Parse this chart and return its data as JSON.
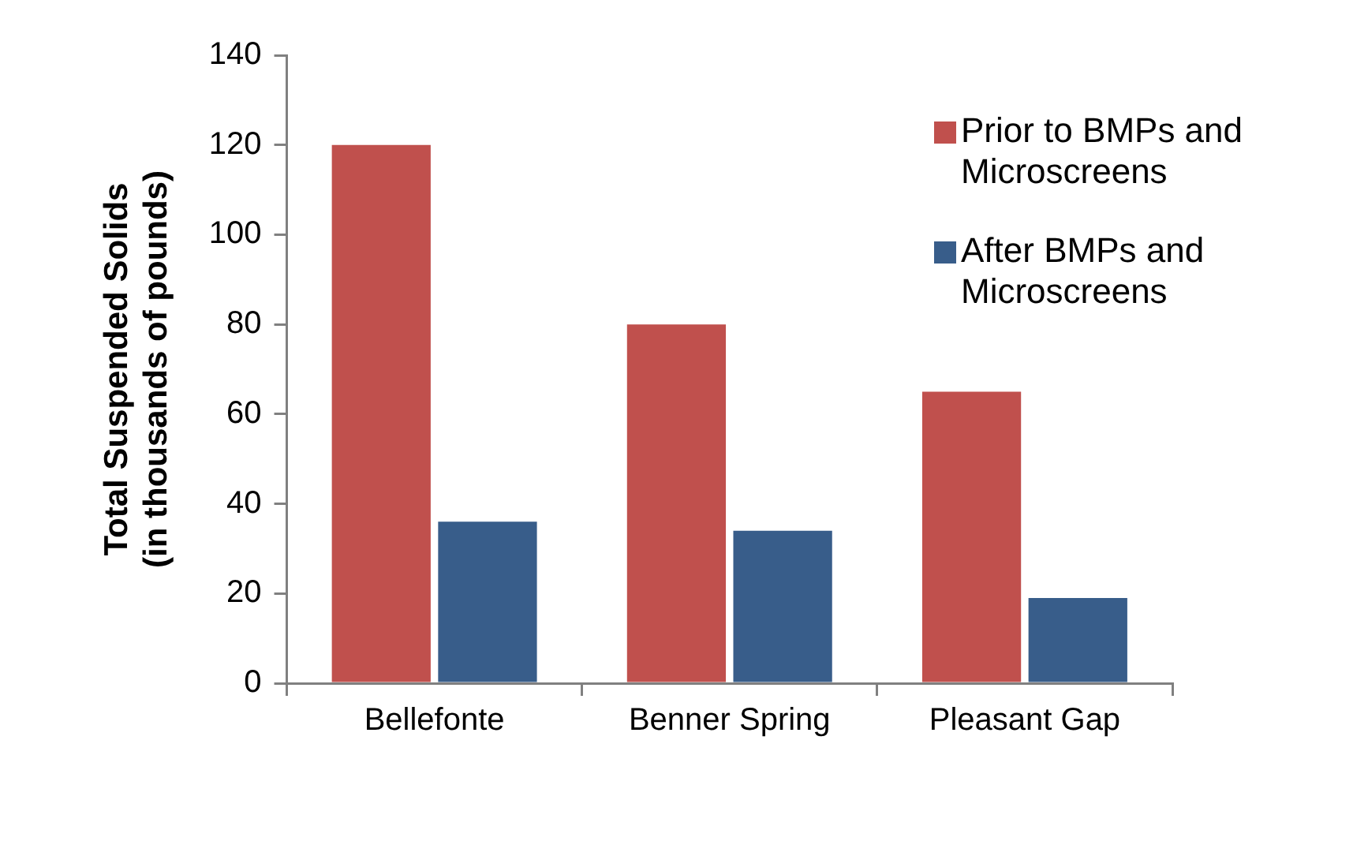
{
  "chart_data": {
    "type": "bar",
    "ylabel": "Total Suspended Solids\n(in thousands of pounds)",
    "categories": [
      "Bellefonte",
      "Benner Spring",
      "Pleasant Gap"
    ],
    "series": [
      {
        "name": "Prior to BMPs and Microscreens",
        "color": "#c0504d",
        "values": [
          120,
          80,
          65
        ]
      },
      {
        "name": "After BMPs and Microscreens",
        "color": "#385d8a",
        "values": [
          36,
          34,
          19
        ]
      }
    ],
    "ylim": [
      0,
      140
    ],
    "yticks": [
      0,
      20,
      40,
      60,
      80,
      100,
      120,
      140
    ],
    "grid": false,
    "legend": "top right"
  }
}
